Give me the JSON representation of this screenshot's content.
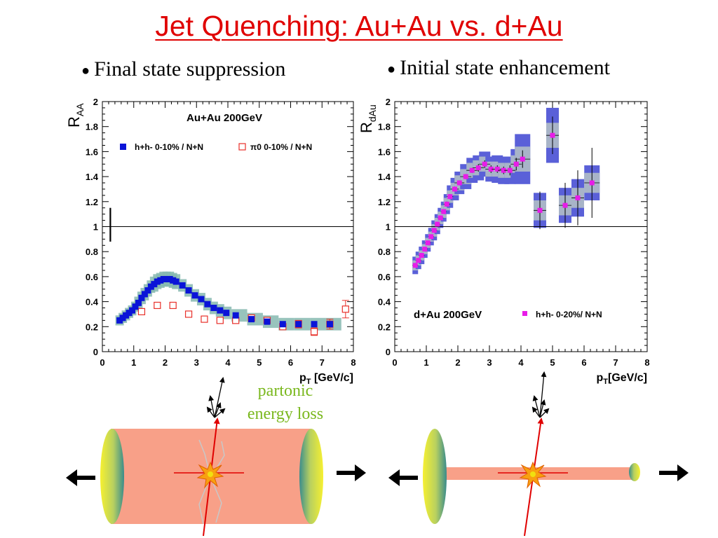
{
  "slide": {
    "title": "Jet Quenching: Au+Au vs. d+Au",
    "bullet_left": "Final state suppression",
    "bullet_right": "Initial state enhancement",
    "partonic_line1": "partonic",
    "partonic_line2": "energy loss"
  },
  "colors": {
    "title": "#e00000",
    "auau_marker": "#0a14d8",
    "auau_band": "#86b8b0",
    "pi0_marker": "#e8302a",
    "dau_marker": "#e81ce8",
    "dau_band_outer": "#5a60d8",
    "dau_band_inner": "#a8b4c8",
    "medium": "#f8a088",
    "partonic_text": "#7ab81e"
  },
  "chart_data": [
    {
      "type": "scatter",
      "ylabel_main": "R",
      "ylabel_sub": "AA",
      "xlabel_main": "p",
      "xlabel_sub": "T",
      "xlabel_rest": " [GeV/c]",
      "annotation": "Au+Au 200GeV",
      "xlim": [
        0,
        8
      ],
      "ylim": [
        0,
        2
      ],
      "xticks": [
        "0",
        "1",
        "2",
        "3",
        "4",
        "5",
        "6",
        "7",
        "8"
      ],
      "yticks": [
        "0",
        "0.2",
        "0.4",
        "0.6",
        "0.8",
        "1",
        "1.2",
        "1.4",
        "1.6",
        "1.8",
        "2"
      ],
      "reference_line": 1,
      "normalization_bar": {
        "x": 0.5,
        "y_low": 0.88,
        "y_high": 1.15
      },
      "legend": [
        {
          "text": "h+h- 0-10% / N+N",
          "marker": "filled-square"
        },
        {
          "text": "π0 0-10% / N+N",
          "marker": "open-square"
        }
      ],
      "series": [
        {
          "name": "h+h- 0-10% / N+N",
          "x": [
            0.55,
            0.65,
            0.75,
            0.85,
            0.95,
            1.05,
            1.15,
            1.25,
            1.35,
            1.45,
            1.55,
            1.65,
            1.75,
            1.85,
            1.95,
            2.05,
            2.15,
            2.25,
            2.35,
            2.55,
            2.75,
            2.95,
            3.15,
            3.35,
            3.55,
            3.75,
            3.95,
            4.25,
            4.75,
            5.25,
            5.75,
            6.25,
            6.75,
            7.25
          ],
          "y": [
            0.25,
            0.27,
            0.29,
            0.31,
            0.33,
            0.36,
            0.39,
            0.43,
            0.46,
            0.49,
            0.52,
            0.54,
            0.56,
            0.57,
            0.58,
            0.58,
            0.58,
            0.57,
            0.56,
            0.53,
            0.49,
            0.45,
            0.42,
            0.38,
            0.35,
            0.33,
            0.31,
            0.29,
            0.26,
            0.24,
            0.22,
            0.22,
            0.22,
            0.22
          ],
          "band_half_width": [
            0.02,
            0.02,
            0.02,
            0.02,
            0.02,
            0.02,
            0.03,
            0.03,
            0.03,
            0.03,
            0.03,
            0.04,
            0.04,
            0.04,
            0.04,
            0.04,
            0.04,
            0.04,
            0.04,
            0.03,
            0.03,
            0.03,
            0.03,
            0.03,
            0.03,
            0.03,
            0.03,
            0.03,
            0.03,
            0.03,
            0.03,
            0.03,
            0.03,
            0.03
          ]
        },
        {
          "name": "π0 0-10% / N+N",
          "x": [
            1.25,
            1.75,
            2.25,
            2.75,
            3.25,
            3.75,
            4.25,
            4.75,
            5.25,
            5.75,
            6.25,
            6.75,
            7.25,
            7.75
          ],
          "y": [
            0.32,
            0.37,
            0.37,
            0.3,
            0.26,
            0.25,
            0.25,
            0.27,
            0.25,
            0.2,
            0.22,
            0.16,
            0.22,
            0.34
          ],
          "err": [
            0.02,
            0.02,
            0.02,
            0.02,
            0.02,
            0.02,
            0.02,
            0.02,
            0.02,
            0.02,
            0.03,
            0.03,
            0.04,
            0.07
          ]
        }
      ]
    },
    {
      "type": "scatter",
      "ylabel_main": "R",
      "ylabel_sub": "dAu",
      "xlabel_main": "p",
      "xlabel_sub": "T",
      "xlabel_rest": "[GeV/c]",
      "annotation": "d+Au 200GeV",
      "xlim": [
        0,
        8
      ],
      "ylim": [
        0,
        2
      ],
      "xticks": [
        "0",
        "1",
        "2",
        "3",
        "4",
        "5",
        "6",
        "7",
        "8"
      ],
      "yticks": [
        "0",
        "0.2",
        "0.4",
        "0.6",
        "0.8",
        "1",
        "1.2",
        "1.4",
        "1.6",
        "1.8",
        "2"
      ],
      "reference_line": 1,
      "legend": [
        {
          "text": "h+h- 0-20%/ N+N",
          "marker": "filled-square"
        }
      ],
      "series": [
        {
          "name": "h+h- 0-20%/ N+N",
          "x": [
            0.65,
            0.75,
            0.85,
            0.95,
            1.05,
            1.15,
            1.25,
            1.35,
            1.45,
            1.55,
            1.65,
            1.75,
            1.9,
            2.05,
            2.25,
            2.45,
            2.65,
            2.85,
            3.05,
            3.25,
            3.45,
            3.65,
            3.85,
            4.05,
            4.6,
            5.0,
            5.4,
            5.8,
            6.25
          ],
          "y": [
            0.69,
            0.73,
            0.77,
            0.82,
            0.87,
            0.92,
            0.97,
            1.02,
            1.07,
            1.12,
            1.18,
            1.24,
            1.3,
            1.35,
            1.4,
            1.45,
            1.47,
            1.5,
            1.46,
            1.46,
            1.45,
            1.45,
            1.5,
            1.54,
            1.13,
            1.73,
            1.17,
            1.23,
            1.35
          ],
          "sys_outer": [
            0.07,
            0.07,
            0.07,
            0.07,
            0.07,
            0.07,
            0.08,
            0.08,
            0.08,
            0.08,
            0.08,
            0.09,
            0.09,
            0.09,
            0.1,
            0.1,
            0.1,
            0.1,
            0.1,
            0.11,
            0.11,
            0.11,
            0.12,
            0.2,
            0.14,
            0.22,
            0.14,
            0.15,
            0.14
          ],
          "sys_inner": [
            0.04,
            0.04,
            0.04,
            0.04,
            0.04,
            0.04,
            0.05,
            0.05,
            0.05,
            0.05,
            0.05,
            0.05,
            0.05,
            0.06,
            0.06,
            0.06,
            0.06,
            0.06,
            0.06,
            0.06,
            0.06,
            0.06,
            0.07,
            0.1,
            0.08,
            0.1,
            0.08,
            0.08,
            0.08
          ],
          "stat": [
            0.01,
            0.01,
            0.01,
            0.01,
            0.01,
            0.01,
            0.01,
            0.01,
            0.01,
            0.01,
            0.02,
            0.02,
            0.02,
            0.02,
            0.02,
            0.02,
            0.03,
            0.03,
            0.03,
            0.03,
            0.03,
            0.04,
            0.05,
            0.07,
            0.15,
            0.15,
            0.18,
            0.22,
            0.28
          ]
        }
      ]
    }
  ]
}
